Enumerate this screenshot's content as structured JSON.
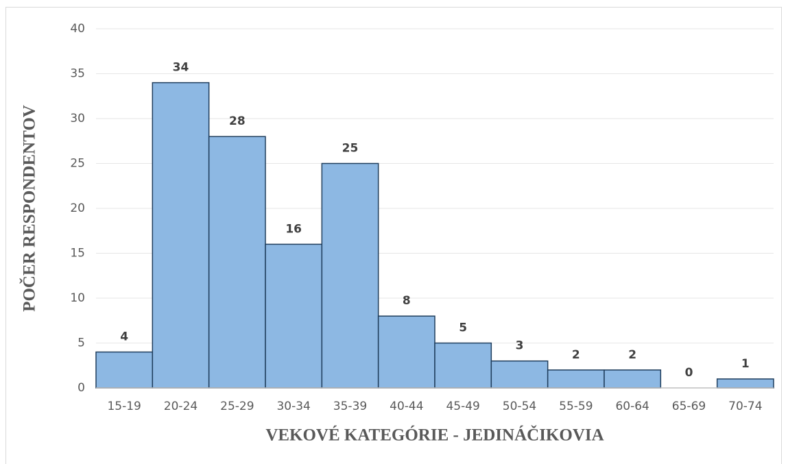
{
  "chart_data": {
    "type": "bar",
    "x_label": "VEKOVÉ KATEGÓRIE - JEDINÁČIKOVIA",
    "y_label": "POČER RESPONDENTOV",
    "categories": [
      "15-19",
      "20-24",
      "25-29",
      "30-34",
      "35-39",
      "40-44",
      "45-49",
      "50-54",
      "55-59",
      "60-64",
      "65-69",
      "70-74"
    ],
    "values": [
      4,
      34,
      28,
      16,
      25,
      8,
      5,
      3,
      2,
      2,
      0,
      1
    ],
    "color": "#8db8e3",
    "ylim": [
      0,
      40
    ],
    "yticks": [
      0,
      5,
      10,
      15,
      20,
      25,
      30,
      35,
      40
    ],
    "grid": true
  }
}
